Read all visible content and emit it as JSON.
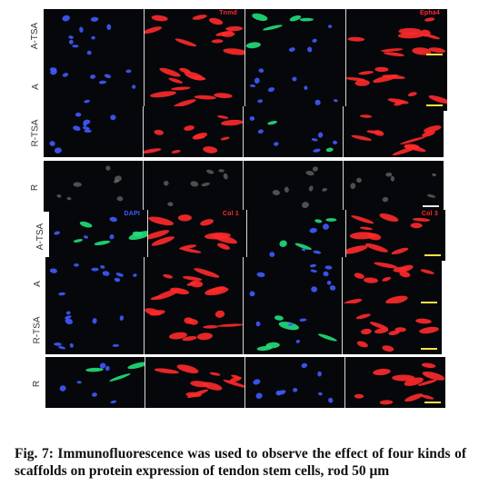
{
  "figure": {
    "caption": "Fig. 7: Immunofluorescence was used to observe the effect of four kinds of scaffolds on protein expression of tendon stem cells, rod 50 μm",
    "channel_colors": {
      "blue": "#3f5bff",
      "red": "#ff2a2a",
      "green": "#21e07a",
      "gray": "#8a8a8a"
    },
    "rows": [
      {
        "label": "A-TSA",
        "panels": [
          {
            "channel": "blue",
            "label": ""
          },
          {
            "channel": "red",
            "label": "Tnmd"
          },
          {
            "channel": "mixed",
            "label": ""
          },
          {
            "channel": "red",
            "label": "Epha4"
          }
        ],
        "scalebar_color": "#ffe24a"
      },
      {
        "label": "A",
        "panels": [
          {
            "channel": "blue",
            "label": ""
          },
          {
            "channel": "red",
            "label": ""
          },
          {
            "channel": "blue",
            "label": ""
          },
          {
            "channel": "red",
            "label": ""
          }
        ],
        "scalebar_color": "#ffe24a"
      },
      {
        "label": "R-TSA",
        "panels": [
          {
            "channel": "blue",
            "label": ""
          },
          {
            "channel": "red",
            "label": ""
          },
          {
            "channel": "mixed",
            "label": ""
          },
          {
            "channel": "red",
            "label": ""
          }
        ],
        "scalebar_color": ""
      },
      {
        "label": "R",
        "panels": [
          {
            "channel": "gray",
            "label": ""
          },
          {
            "channel": "gray",
            "label": ""
          },
          {
            "channel": "gray",
            "label": ""
          },
          {
            "channel": "gray",
            "label": ""
          }
        ],
        "scalebar_color": "#e8e8e8"
      },
      {
        "label": "A-TSA",
        "panels": [
          {
            "channel": "mixed",
            "label": "DAPI"
          },
          {
            "channel": "red",
            "label": "Col 1"
          },
          {
            "channel": "mixed",
            "label": ""
          },
          {
            "channel": "red",
            "label": "Col 3"
          }
        ],
        "scalebar_color": "#ffe24a"
      },
      {
        "label": "A",
        "panels": [
          {
            "channel": "blue",
            "label": ""
          },
          {
            "channel": "red",
            "label": ""
          },
          {
            "channel": "blue",
            "label": ""
          },
          {
            "channel": "red",
            "label": ""
          }
        ],
        "scalebar_color": "#ffe24a"
      },
      {
        "label": "R-TSA",
        "panels": [
          {
            "channel": "blue",
            "label": ""
          },
          {
            "channel": "red",
            "label": ""
          },
          {
            "channel": "mixed",
            "label": ""
          },
          {
            "channel": "red",
            "label": ""
          }
        ],
        "scalebar_color": "#ffe24a"
      },
      {
        "label": "R",
        "panels": [
          {
            "channel": "mixed",
            "label": ""
          },
          {
            "channel": "red",
            "label": ""
          },
          {
            "channel": "blue",
            "label": ""
          },
          {
            "channel": "red",
            "label": ""
          }
        ],
        "scalebar_color": "#ffe24a"
      }
    ]
  }
}
